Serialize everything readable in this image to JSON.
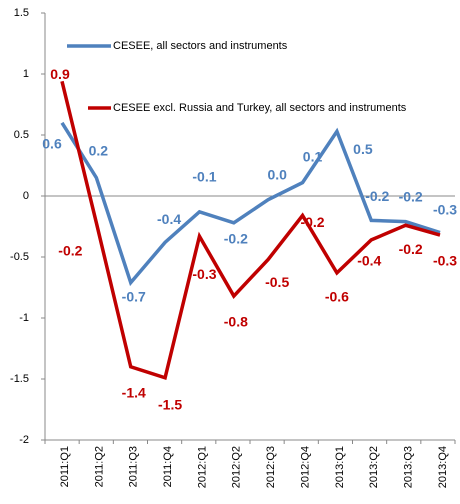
{
  "chart_data": {
    "type": "line",
    "categories": [
      "2011:Q1",
      "2011:Q2",
      "2011:Q3",
      "2011:Q4",
      "2012:Q1",
      "2012:Q2",
      "2012:Q3",
      "2012:Q4",
      "2013:Q1",
      "2013:Q2",
      "2013:Q3",
      "2013:Q4"
    ],
    "series": [
      {
        "name": "CESEE, all sectors and instruments",
        "color": "#4f81bd",
        "values": [
          0.6,
          0.15,
          -0.71,
          -0.38,
          -0.13,
          -0.22,
          -0.03,
          0.11,
          0.53,
          -0.2,
          -0.21,
          -0.3
        ],
        "value_labels": [
          "0.6",
          "0.2",
          "-0.7",
          "-0.4",
          "-0.1",
          "-0.2",
          "0.0",
          "0.1",
          "0.5",
          "-0.2",
          "-0.2",
          "-0.3"
        ]
      },
      {
        "name": "CESEE excl. Russia and Turkey, all sectors and instruments",
        "color": "#c00000",
        "values": [
          0.94,
          -0.22,
          -1.4,
          -1.49,
          -0.33,
          -0.82,
          -0.52,
          -0.16,
          -0.63,
          -0.36,
          -0.24,
          -0.32
        ],
        "value_labels": [
          "0.9",
          "-0.2",
          "-1.4",
          "-1.5",
          "-0.3",
          "-0.8",
          "-0.5",
          "-0.2",
          "-0.6",
          "-0.4",
          "-0.2",
          "-0.3"
        ]
      }
    ],
    "ylim": [
      -2,
      1.5
    ],
    "yticks": [
      -2,
      -1.5,
      -1,
      -0.5,
      0,
      0.5,
      1,
      1.5
    ],
    "grid": false
  }
}
